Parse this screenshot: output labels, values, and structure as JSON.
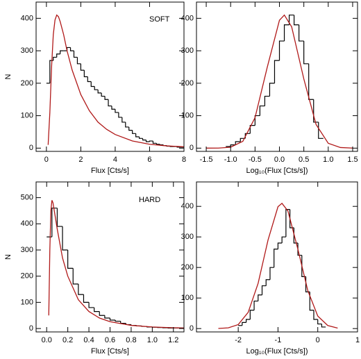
{
  "chart_data": [
    {
      "type": "histogram",
      "annotation": "SOFT",
      "xlabel": "Flux [Cts/s]",
      "ylabel": "N",
      "xlim": [
        -0.6,
        8
      ],
      "xticks": [
        0,
        2,
        4,
        6,
        8
      ],
      "ylim": [
        -10,
        450
      ],
      "yticks": [
        0,
        100,
        200,
        300,
        400
      ],
      "color": "#000000",
      "bins": [
        0,
        0.2,
        0.4,
        0.6,
        0.8,
        1,
        1.2,
        1.4,
        1.6,
        1.8,
        2,
        2.2,
        2.4,
        2.6,
        2.8,
        3,
        3.2,
        3.4,
        3.6,
        3.8,
        4,
        4.2,
        4.4,
        4.6,
        4.8,
        5,
        5.2,
        5.4,
        5.6,
        5.8,
        6,
        6.2,
        6.4,
        6.6,
        6.8,
        7,
        7.2,
        7.4,
        7.6,
        7.8,
        8
      ],
      "counts": [
        200,
        270,
        280,
        290,
        300,
        300,
        310,
        300,
        280,
        260,
        240,
        220,
        205,
        190,
        180,
        170,
        160,
        150,
        130,
        120,
        110,
        95,
        80,
        65,
        55,
        45,
        35,
        30,
        25,
        20,
        22,
        15,
        12,
        10,
        8,
        6,
        5,
        5,
        3,
        3
      ],
      "fit": {
        "color": "#b01818",
        "x": [
          0.1,
          0.2,
          0.3,
          0.4,
          0.5,
          0.6,
          0.7,
          0.8,
          1,
          1.2,
          1.5,
          2,
          2.5,
          3,
          3.5,
          4,
          5,
          6,
          7,
          8
        ],
        "values": [
          10,
          110,
          250,
          350,
          395,
          410,
          405,
          390,
          350,
          300,
          240,
          165,
          115,
          80,
          58,
          42,
          22,
          12,
          7,
          4
        ]
      }
    },
    {
      "type": "histogram",
      "xlabel": "Log₁₀(Flux [Cts/s])",
      "xlim": [
        -1.7,
        1.6
      ],
      "xticks": [
        -1.5,
        {
          "value": -1,
          "label": "-1.0"
        },
        -0.5,
        {
          "value": 0,
          "label": "0.0"
        },
        0.5,
        {
          "value": 1,
          "label": "1.0"
        },
        1.5
      ],
      "ylim": [
        -10,
        450
      ],
      "yticks": [
        0,
        100,
        200,
        300,
        400
      ],
      "color": "#000000",
      "bins": [
        -1.1,
        -1,
        -0.9,
        -0.8,
        -0.7,
        -0.6,
        -0.5,
        -0.4,
        -0.3,
        -0.2,
        -0.1,
        0,
        0.1,
        0.2,
        0.3,
        0.4,
        0.5,
        0.6,
        0.7,
        0.8,
        0.9
      ],
      "counts": [
        5,
        10,
        20,
        30,
        45,
        70,
        100,
        130,
        160,
        200,
        270,
        330,
        380,
        410,
        380,
        330,
        260,
        150,
        80,
        30
      ],
      "fit": {
        "color": "#b01818",
        "x": [
          -1.5,
          -1.25,
          -1,
          -0.75,
          -0.5,
          -0.25,
          0,
          0.1,
          0.25,
          0.5,
          0.75,
          1,
          1.25,
          1.5
        ],
        "values": [
          0.01,
          0.24,
          2.9,
          21,
          94,
          249,
          394,
          410,
          374,
          213,
          73,
          15,
          1.9,
          0.1
        ]
      }
    },
    {
      "type": "histogram",
      "annotation": "HARD",
      "xlabel": "Flux [Cts/s]",
      "ylabel": "N",
      "xlim": [
        -0.1,
        1.3
      ],
      "xticks": [
        {
          "value": 0,
          "label": "0.0"
        },
        0.2,
        0.4,
        0.6,
        0.8,
        {
          "value": 1,
          "label": "1.0"
        },
        1.2
      ],
      "ylim": [
        -13,
        560
      ],
      "yticks": [
        0,
        100,
        200,
        300,
        400,
        500
      ],
      "color": "#000000",
      "bins": [
        0,
        0.05,
        0.1,
        0.15,
        0.2,
        0.25,
        0.3,
        0.35,
        0.4,
        0.45,
        0.5,
        0.55,
        0.6,
        0.65,
        0.7,
        0.75,
        0.8,
        0.85,
        0.9,
        0.95,
        1,
        1.05,
        1.1,
        1.15,
        1.2,
        1.25,
        1.3
      ],
      "counts": [
        350,
        460,
        390,
        300,
        230,
        170,
        130,
        100,
        80,
        65,
        50,
        40,
        32,
        28,
        20,
        15,
        12,
        10,
        8,
        6,
        5,
        4,
        3,
        2,
        2,
        2
      ],
      "fit": {
        "color": "#b01818",
        "x": [
          0.02,
          0.03,
          0.04,
          0.05,
          0.06,
          0.08,
          0.1,
          0.15,
          0.2,
          0.3,
          0.4,
          0.5,
          0.6,
          0.8,
          1,
          1.2,
          1.3
        ],
        "values": [
          50,
          300,
          450,
          490,
          480,
          430,
          380,
          270,
          200,
          110,
          65,
          40,
          26,
          12,
          6,
          3,
          2
        ]
      }
    },
    {
      "type": "histogram",
      "xlabel": "Log₁₀(Flux [Cts/s])",
      "xlim": [
        -3.05,
        1
      ],
      "xticks": [
        -2,
        -1,
        0,
        1
      ],
      "ylim": [
        -11,
        480
      ],
      "yticks": [
        0,
        100,
        200,
        300,
        400
      ],
      "color": "#000000",
      "bins": [
        -2,
        -1.9,
        -1.8,
        -1.7,
        -1.6,
        -1.5,
        -1.4,
        -1.3,
        -1.2,
        -1.1,
        -1,
        -0.9,
        -0.8,
        -0.7,
        -0.6,
        -0.5,
        -0.4,
        -0.3,
        -0.2,
        -0.1,
        0,
        0.1,
        0.2
      ],
      "counts": [
        10,
        20,
        30,
        60,
        90,
        110,
        140,
        160,
        200,
        260,
        280,
        300,
        390,
        330,
        280,
        240,
        170,
        120,
        60,
        30,
        15,
        5
      ],
      "fit": {
        "color": "#b01818",
        "x": [
          -2.5,
          -2.25,
          -2,
          -1.75,
          -1.5,
          -1.25,
          -1,
          -0.9,
          -0.75,
          -0.5,
          -0.25,
          0,
          0.25,
          0.5
        ],
        "values": [
          0.3,
          2.3,
          13,
          53,
          148,
          290,
          399,
          410,
          385,
          260,
          124,
          41,
          10,
          1.6
        ]
      }
    }
  ]
}
